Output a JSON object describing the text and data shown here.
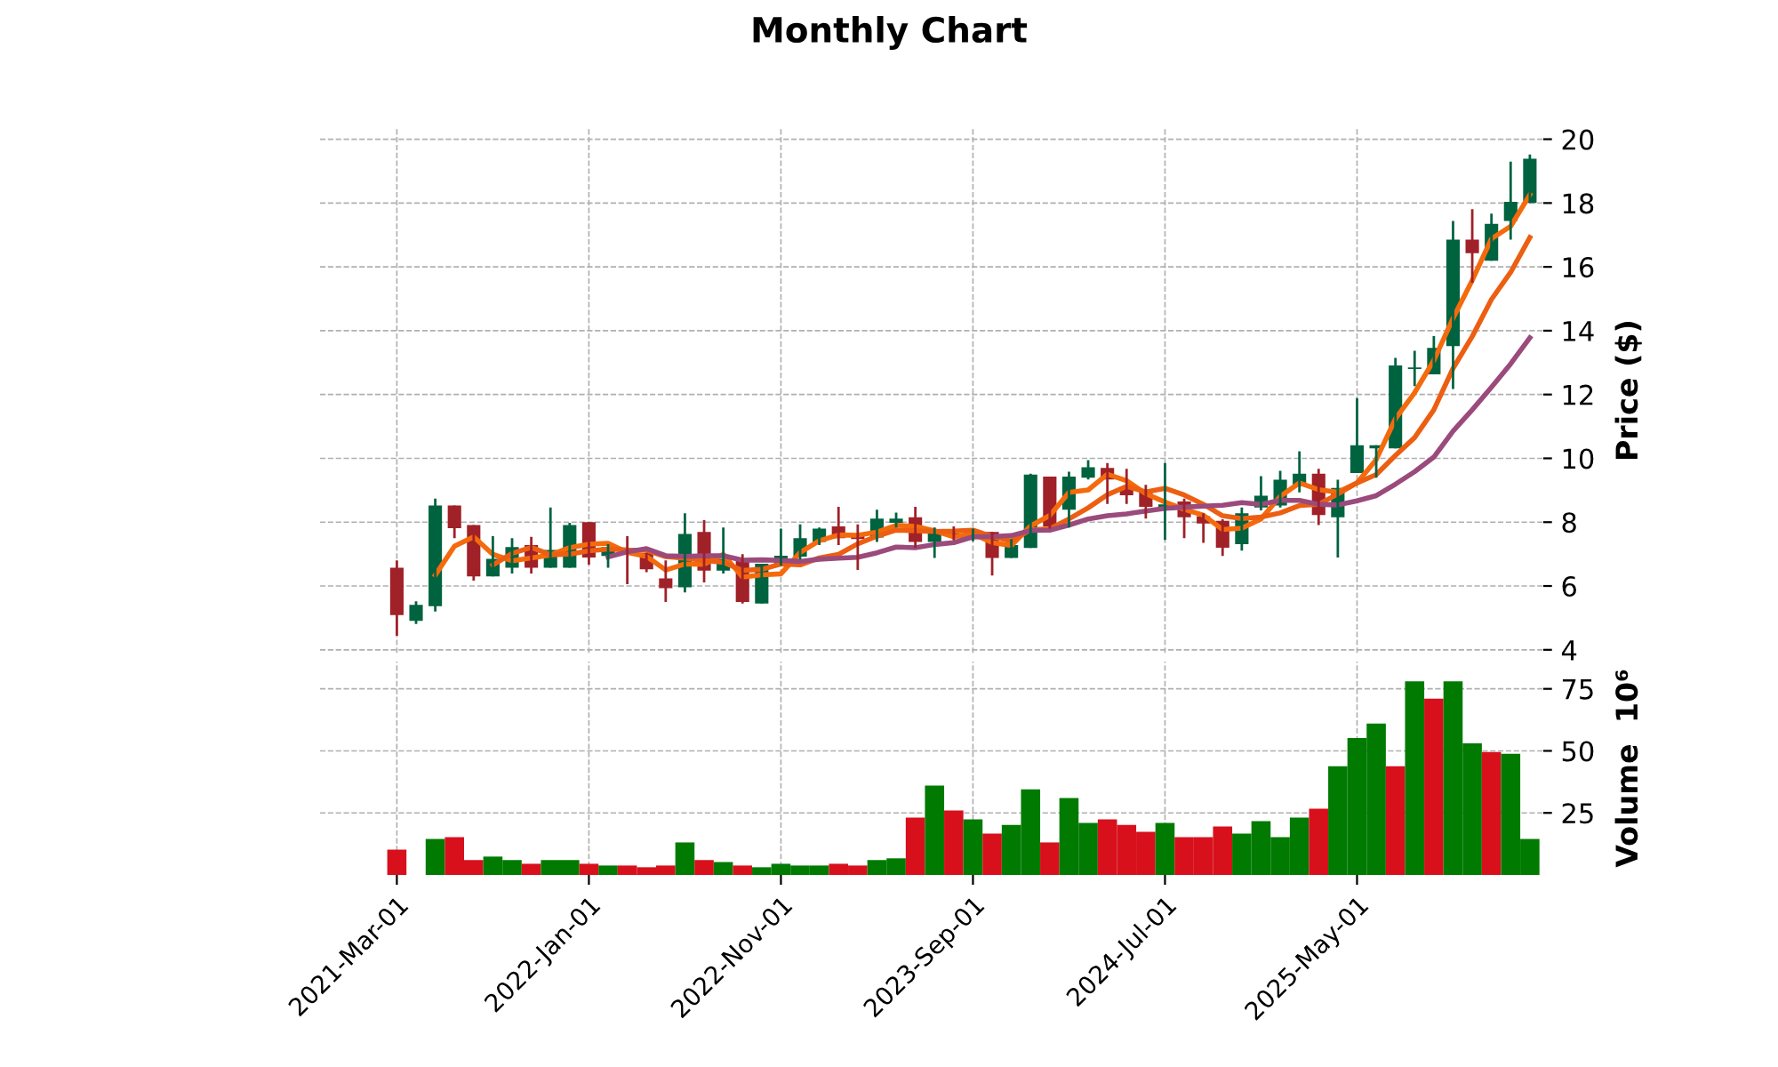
{
  "chart_data": [
    {
      "type": "candlestick",
      "title": "Monthly Chart",
      "ylabel": "Price ($)",
      "ylim": [
        3.9,
        20.35
      ],
      "yticks": [
        4,
        6,
        8,
        10,
        12,
        14,
        16,
        18,
        20
      ],
      "grid": true,
      "legend": false,
      "tick_labels": "y",
      "colors": [
        "#a02128",
        "#006340",
        "#006340",
        "#a02128",
        "#a02128",
        "#006340",
        "#006340",
        "#a02128",
        "#006340",
        "#006340",
        "#a02128",
        "#006340",
        "#a02128",
        "#a02128",
        "#a02128",
        "#006340",
        "#a02128",
        "#006340",
        "#a02128",
        "#006340",
        "#006340",
        "#006340",
        "#006340",
        "#a02128",
        "#a02128",
        "#006340",
        "#006340",
        "#a02128",
        "#006340",
        "#a02128",
        "#006340",
        "#a02128",
        "#006340",
        "#006340",
        "#a02128",
        "#006340",
        "#006340",
        "#a02128",
        "#a02128",
        "#a02128",
        "#006340",
        "#a02128",
        "#a02128",
        "#a02128",
        "#006340",
        "#006340",
        "#006340",
        "#006340",
        "#a02128",
        "#006340",
        "#006340",
        "#006340",
        "#006340",
        "#006340",
        "#006340",
        "#006340",
        "#a02128",
        "#006340",
        "#006340",
        "#006340"
      ],
      "categories": [
        null,
        null,
        null,
        null,
        null,
        null,
        null,
        null,
        null,
        null,
        null,
        null,
        null,
        null,
        null,
        null,
        null,
        null,
        null,
        null,
        null,
        null,
        null,
        null,
        null,
        null,
        null,
        null,
        null,
        null,
        null,
        null,
        null,
        null,
        null,
        null,
        null,
        null,
        null,
        null,
        null,
        null,
        null,
        null,
        null,
        null,
        null,
        null,
        null,
        null,
        null,
        null,
        null,
        null,
        null,
        null,
        null,
        null,
        null,
        null
      ],
      "ohlc": [
        [
          6.57,
          6.8,
          4.44,
          5.09
        ],
        [
          4.91,
          5.52,
          4.81,
          5.41
        ],
        [
          5.37,
          8.74,
          5.2,
          8.52
        ],
        [
          8.52,
          8.52,
          7.5,
          7.81
        ],
        [
          7.91,
          7.91,
          6.17,
          6.3
        ],
        [
          6.3,
          7.56,
          6.3,
          6.85
        ],
        [
          6.57,
          7.5,
          6.39,
          7.22
        ],
        [
          7.28,
          7.54,
          6.39,
          6.57
        ],
        [
          6.57,
          8.46,
          6.57,
          7.13
        ],
        [
          6.57,
          7.98,
          6.57,
          7.91
        ],
        [
          8.0,
          8.0,
          6.67,
          6.89
        ],
        [
          6.94,
          7.31,
          6.57,
          7.22
        ],
        [
          7.13,
          7.56,
          6.06,
          7.04
        ],
        [
          7.04,
          7.04,
          6.43,
          6.52
        ],
        [
          6.24,
          6.8,
          5.5,
          5.93
        ],
        [
          5.96,
          8.28,
          5.8,
          7.63
        ],
        [
          7.69,
          8.06,
          6.11,
          6.48
        ],
        [
          6.48,
          7.83,
          6.39,
          6.85
        ],
        [
          6.8,
          7.0,
          5.45,
          5.5
        ],
        [
          5.45,
          6.7,
          5.45,
          6.7
        ],
        [
          6.64,
          7.8,
          6.64,
          6.95
        ],
        [
          6.92,
          7.93,
          6.83,
          7.5
        ],
        [
          7.38,
          7.83,
          7.28,
          7.8
        ],
        [
          7.87,
          8.48,
          7.28,
          7.5
        ],
        [
          7.6,
          7.93,
          6.5,
          7.47
        ],
        [
          7.52,
          8.39,
          7.38,
          8.11
        ],
        [
          7.98,
          8.3,
          7.83,
          8.11
        ],
        [
          8.15,
          8.48,
          7.2,
          7.38
        ],
        [
          7.38,
          7.83,
          6.88,
          7.69
        ],
        [
          7.65,
          7.87,
          7.43,
          7.56
        ],
        [
          7.47,
          7.8,
          7.4,
          7.65
        ],
        [
          7.69,
          7.69,
          6.33,
          6.88
        ],
        [
          6.88,
          7.47,
          6.88,
          7.28
        ],
        [
          7.19,
          9.52,
          7.19,
          9.49
        ],
        [
          9.43,
          9.43,
          7.8,
          7.87
        ],
        [
          8.39,
          9.58,
          7.83,
          9.43
        ],
        [
          9.39,
          9.94,
          9.34,
          9.72
        ],
        [
          9.7,
          9.85,
          8.57,
          9.34
        ],
        [
          9.12,
          9.67,
          8.57,
          8.84
        ],
        [
          8.94,
          9.17,
          8.11,
          8.48
        ],
        [
          8.46,
          9.85,
          7.44,
          8.56
        ],
        [
          8.65,
          8.74,
          7.5,
          8.15
        ],
        [
          8.19,
          8.28,
          7.35,
          7.96
        ],
        [
          8.04,
          8.09,
          6.94,
          7.2
        ],
        [
          7.31,
          8.46,
          7.11,
          8.28
        ],
        [
          8.46,
          9.44,
          8.37,
          8.83
        ],
        [
          8.52,
          9.61,
          8.46,
          9.33
        ],
        [
          9.13,
          10.22,
          8.93,
          9.52
        ],
        [
          9.52,
          9.67,
          7.91,
          8.22
        ],
        [
          8.15,
          9.33,
          6.89,
          9.07
        ],
        [
          9.54,
          11.89,
          9.54,
          10.41
        ],
        [
          10.31,
          10.41,
          9.39,
          10.41
        ],
        [
          10.31,
          13.15,
          10.31,
          12.91
        ],
        [
          12.8,
          13.37,
          12.26,
          12.85
        ],
        [
          12.63,
          13.83,
          12.63,
          13.46
        ],
        [
          13.52,
          17.44,
          12.17,
          16.85
        ],
        [
          16.85,
          17.81,
          15.5,
          16.43
        ],
        [
          16.19,
          17.67,
          16.19,
          17.35
        ],
        [
          17.44,
          19.3,
          16.85,
          18.04
        ],
        [
          18.0,
          19.52,
          18.0,
          19.39
        ]
      ],
      "series": [
        {
          "type": "line",
          "color": "#f46a0c",
          "values": [
            null,
            null,
            6.34,
            7.25,
            7.54,
            6.99,
            6.79,
            6.88,
            6.97,
            7.2,
            7.31,
            7.34,
            7.05,
            6.93,
            6.5,
            6.69,
            6.68,
            6.99,
            6.28,
            6.35,
            6.38,
            7.05,
            7.42,
            7.6,
            7.59,
            7.69,
            7.9,
            7.87,
            7.73,
            7.54,
            7.63,
            7.36,
            7.27,
            7.88,
            8.21,
            8.93,
            9.01,
            9.5,
            9.3,
            8.89,
            8.63,
            8.4,
            8.22,
            7.77,
            7.81,
            8.1,
            8.81,
            9.23,
            9.02,
            8.94,
            9.23,
            9.96,
            11.24,
            12.06,
            13.07,
            14.39,
            15.58,
            16.88,
            17.27,
            18.26
          ]
        },
        {
          "type": "line",
          "color": "#ec5f12",
          "values": [
            null,
            null,
            null,
            null,
            null,
            6.66,
            7.02,
            7.21,
            6.98,
            7.0,
            7.1,
            7.16,
            7.13,
            7.12,
            6.92,
            6.87,
            6.8,
            6.74,
            6.49,
            6.52,
            6.69,
            6.66,
            6.88,
            6.99,
            7.32,
            7.56,
            7.75,
            7.73,
            7.71,
            7.72,
            7.75,
            7.55,
            7.41,
            7.76,
            7.79,
            8.1,
            8.45,
            8.86,
            9.12,
            8.95,
            9.06,
            8.85,
            8.56,
            8.2,
            8.11,
            8.16,
            8.29,
            8.52,
            8.56,
            8.88,
            9.23,
            9.49,
            10.09,
            10.65,
            11.52,
            12.82,
            13.82,
            14.98,
            15.83,
            16.92
          ]
        },
        {
          "type": "line",
          "color": "#9b4a7c",
          "values": [
            null,
            null,
            null,
            null,
            null,
            null,
            null,
            null,
            null,
            null,
            null,
            6.91,
            7.07,
            7.17,
            6.95,
            6.93,
            6.95,
            6.95,
            6.81,
            6.82,
            6.8,
            6.77,
            6.84,
            6.87,
            6.9,
            7.04,
            7.22,
            7.2,
            7.3,
            7.36,
            7.54,
            7.55,
            7.58,
            7.74,
            7.75,
            7.91,
            8.1,
            8.2,
            8.26,
            8.35,
            8.43,
            8.47,
            8.5,
            8.53,
            8.61,
            8.56,
            8.68,
            8.68,
            8.56,
            8.54,
            8.67,
            8.83,
            9.19,
            9.58,
            10.04,
            10.85,
            11.52,
            12.23,
            12.96,
            13.78
          ]
        }
      ]
    },
    {
      "type": "bar",
      "ylabel": "Volume  10⁶",
      "ylim": [
        0,
        86
      ],
      "yticks": [
        25,
        50,
        75
      ],
      "grid": true,
      "legend": false,
      "categories": [
        "2021-Mar-01",
        null,
        null,
        null,
        null,
        null,
        null,
        null,
        null,
        null,
        "2022-Jan-01",
        null,
        null,
        null,
        null,
        null,
        null,
        null,
        null,
        null,
        "2022-Nov-01",
        null,
        null,
        null,
        null,
        null,
        null,
        null,
        null,
        null,
        "2023-Sep-01",
        null,
        null,
        null,
        null,
        null,
        null,
        null,
        null,
        null,
        "2024-Jul-01",
        null,
        null,
        null,
        null,
        null,
        null,
        null,
        null,
        null,
        "2025-May-01",
        null,
        null,
        null,
        null,
        null,
        null,
        null,
        null,
        null
      ],
      "values": [
        10.2,
        null,
        14.5,
        15.2,
        6,
        7.4,
        6,
        4.5,
        6,
        6,
        4.5,
        3.8,
        3.8,
        3.1,
        3.8,
        13.1,
        6,
        5.2,
        3.8,
        3.1,
        4.5,
        3.8,
        3.8,
        4.5,
        3.8,
        6,
        6.7,
        23.1,
        36,
        26,
        22.4,
        16.7,
        20.2,
        34.5,
        13.1,
        31,
        21,
        22.4,
        20.2,
        17.4,
        21,
        15.2,
        15.2,
        19.5,
        16.7,
        21.7,
        15.2,
        23.1,
        26.7,
        43.8,
        55.2,
        61,
        43.8,
        78,
        71,
        78,
        53,
        49.5,
        48.8,
        14.5
      ],
      "colors": [
        "#d7101c",
        "#007a00",
        "#007a00",
        "#d7101c",
        "#d7101c",
        "#007a00",
        "#007a00",
        "#d7101c",
        "#007a00",
        "#007a00",
        "#d7101c",
        "#007a00",
        "#d7101c",
        "#d7101c",
        "#d7101c",
        "#007a00",
        "#d7101c",
        "#007a00",
        "#d7101c",
        "#007a00",
        "#007a00",
        "#007a00",
        "#007a00",
        "#d7101c",
        "#d7101c",
        "#007a00",
        "#007a00",
        "#d7101c",
        "#007a00",
        "#d7101c",
        "#007a00",
        "#d7101c",
        "#007a00",
        "#007a00",
        "#d7101c",
        "#007a00",
        "#007a00",
        "#d7101c",
        "#d7101c",
        "#d7101c",
        "#007a00",
        "#d7101c",
        "#d7101c",
        "#d7101c",
        "#007a00",
        "#007a00",
        "#007a00",
        "#007a00",
        "#d7101c",
        "#007a00",
        "#007a00",
        "#007a00",
        "#d7101c",
        "#007a00",
        "#d7101c",
        "#007a00",
        "#007a00",
        "#d7101c",
        "#007a00",
        "#007a00"
      ]
    }
  ]
}
